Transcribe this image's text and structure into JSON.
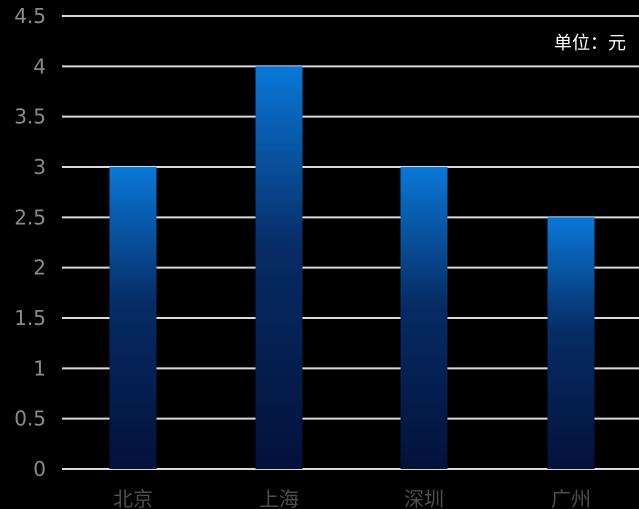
{
  "chart_data": {
    "type": "bar",
    "categories": [
      "北京",
      "上海",
      "深圳",
      "广州"
    ],
    "values": [
      3,
      4,
      3,
      2.5
    ],
    "unit_label": "单位：元",
    "yticks": [
      "0",
      "0.5",
      "1",
      "1.5",
      "2",
      "2.5",
      "3",
      "3.5",
      "4",
      "4.5"
    ],
    "ylim": [
      0,
      4.5
    ],
    "grid": true,
    "legend": "none",
    "colors": {
      "background": "#000000",
      "bar_top": "#0a78d8",
      "bar_mid": "#062c66",
      "bar_bottom": "#03113a",
      "grid": "#d9d9d9",
      "tick_text": "#8a8a8a",
      "category_text": "#4d4d4d",
      "unit_text": "#ffffff"
    }
  }
}
